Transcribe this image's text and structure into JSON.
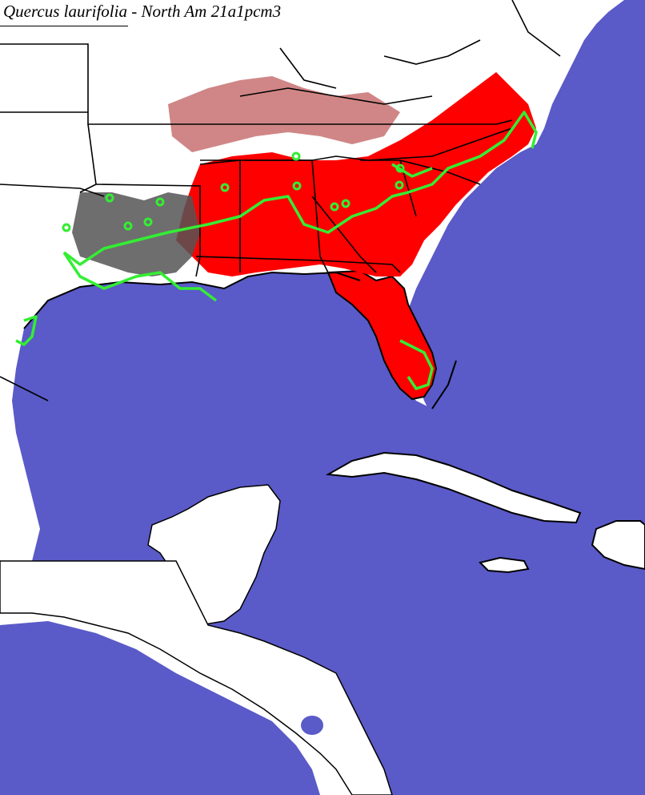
{
  "title": {
    "species": "Quercus laurifolia",
    "suffix": " - North Am 21a1pcm3"
  },
  "colors": {
    "water": "#5a5ac8",
    "land": "#ffffff",
    "border": "#000000",
    "predicted_suitable": "#ff0000",
    "gray_suitability": "#555555",
    "native_range_outline": "#33ee33"
  },
  "legend": []
}
